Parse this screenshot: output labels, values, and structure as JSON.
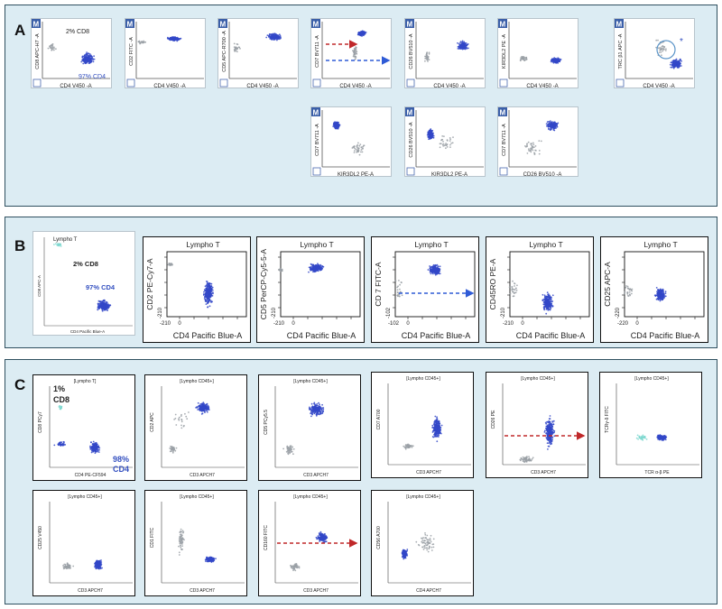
{
  "figure": {
    "panels": [
      {
        "letter": "A"
      },
      {
        "letter": "B"
      },
      {
        "letter": "C"
      }
    ]
  },
  "panel_a": {
    "badge": "M",
    "plots": [
      {
        "ylabel": "CD8 APC-H7 -A",
        "xlabel": "CD4 V450 -A",
        "annotations": [
          "2% CD8",
          "97% CD4"
        ]
      },
      {
        "ylabel": "CD2 FITC -A",
        "xlabel": "CD4 V450 -A"
      },
      {
        "ylabel": "CD5 APC-R700 -A",
        "xlabel": "CD4 V450 -A"
      },
      {
        "ylabel": "CD7 BV711 -A",
        "xlabel": "CD4 V450 -A"
      },
      {
        "ylabel": "CD26 BV510 -A",
        "xlabel": "CD4 V450 -A"
      },
      {
        "ylabel": "KIR3DL2 PE -A",
        "xlabel": "CD4 V450 -A"
      },
      {
        "ylabel": "TRC β1 APC -A",
        "xlabel": "CD4 V450 -A",
        "annotations": [
          "*"
        ]
      },
      {
        "ylabel": "CD7 BV711 -A",
        "xlabel": "KIR3DL2 PE-A"
      },
      {
        "ylabel": "CD26 BV510 -A",
        "xlabel": "KIR3DL2 PE-A"
      },
      {
        "ylabel": "CD7 BV711 -A",
        "xlabel": "CD26 BV510 -A"
      }
    ]
  },
  "panel_b": {
    "gate_title": "Lympho T",
    "plots": [
      {
        "ylabel": "CD8 APC-A",
        "xlabel": "CD4 Pacific Blue-A",
        "annotations": [
          "2% CD8",
          "97% CD4"
        ],
        "ticks": []
      },
      {
        "ylabel": "CD2 PE-Cy7-A",
        "xlabel": "CD4 Pacific Blue-A",
        "ticks": [
          "-210",
          "0"
        ]
      },
      {
        "ylabel": "CD5 PerCP-Cy5-5-A",
        "xlabel": "CD4 Pacific Blue-A",
        "ticks": [
          "-210",
          "0"
        ]
      },
      {
        "ylabel": "CD 7 FITC-A",
        "xlabel": "CD4 Pacific Blue-A",
        "ticks": [
          "-102",
          "0"
        ]
      },
      {
        "ylabel": "CD45RO PE-A",
        "xlabel": "CD4 Pacific Blue-A",
        "ticks": [
          "-210",
          "0"
        ]
      },
      {
        "ylabel": "CD25 APC-A",
        "xlabel": "CD4 Pacific Blue-A",
        "ticks": [
          "-220",
          "0"
        ]
      }
    ]
  },
  "panel_c": {
    "plots": [
      {
        "gate": "[Lympho T]",
        "ylabel": "CD8 PCy7",
        "xlabel": "CD4 PE-CF594",
        "annotations": [
          "1%",
          "CD8",
          "98%",
          "CD4"
        ]
      },
      {
        "gate": "[Lympho CD45+]",
        "ylabel": "CD2 APC",
        "xlabel": "CD3 APCH7"
      },
      {
        "gate": "[Lympho CD45+]",
        "ylabel": "CD5 PCy5.5",
        "xlabel": "CD3 APCH7"
      },
      {
        "gate": "[Lympho CD45+]",
        "ylabel": "CD7 A700",
        "xlabel": "CD3 APCH7"
      },
      {
        "gate": "[Lympho CD45+]",
        "ylabel": "CD26 PE",
        "xlabel": "CD3 APCH7"
      },
      {
        "gate": "[Lympho CD45+]",
        "ylabel": "TCRγ-δ FITC",
        "xlabel": "TCR α-β PE"
      },
      {
        "gate": "[Lympho CD45+]",
        "ylabel": "CD25 V450",
        "xlabel": "CD3 APCH7"
      },
      {
        "gate": "[Lympho CD45+]",
        "ylabel": "CD1 FITC",
        "xlabel": "CD3 APCH7"
      },
      {
        "gate": "[Lympho CD45+]",
        "ylabel": "CD160 FITC",
        "xlabel": "CD3 APCH7"
      },
      {
        "gate": "[Lympho CD45+]",
        "ylabel": "CD56 A700",
        "xlabel": "CD4 APCH7"
      }
    ]
  },
  "colors": {
    "panel_bg": "#dcecf3",
    "panel_border": "#2f4f5f",
    "population_blue": "#3348c8",
    "population_gray": "#9aa0a6",
    "population_cyan": "#7fd8d0",
    "arrow_red": "#c0282a",
    "arrow_blue": "#2f5bd6",
    "gate_circle": "#5a94c8"
  }
}
